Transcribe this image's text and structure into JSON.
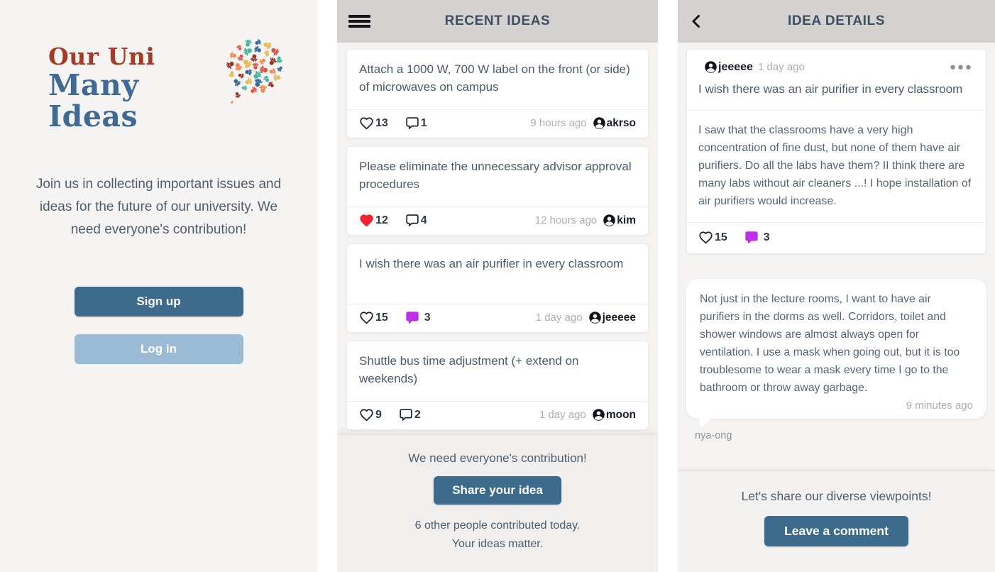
{
  "welcome_screen": {
    "logo_line1": "Our Uni",
    "logo_line2": "Many Ideas",
    "intro": "Join us in collecting important issues and ideas for the future of our university. We need everyone's contribution!",
    "sign_up_label": "Sign up",
    "log_in_label": "Log in"
  },
  "recent_ideas": {
    "title": "RECENT IDEAS",
    "ideas": [
      {
        "title": "Attach a 1000 W, 700 W label on the front (or side) of microwaves on campus",
        "likes": 13,
        "comments": 1,
        "time": "9 hours ago",
        "author": "akrso",
        "liked": false,
        "commented": false
      },
      {
        "title": "Please eliminate the unnecessary advisor approval procedures",
        "likes": 12,
        "comments": 4,
        "time": "12 hours ago",
        "author": "kim",
        "liked": true,
        "commented": false
      },
      {
        "title": "I wish there was an air purifier in every classroom",
        "likes": 15,
        "comments": 3,
        "time": "1 day ago",
        "author": "jeeeee",
        "liked": false,
        "commented": true
      },
      {
        "title": "Shuttle bus time adjustment (+ extend on weekends)",
        "likes": 9,
        "comments": 2,
        "time": "1 day ago",
        "author": "moon",
        "liked": false,
        "commented": false
      }
    ],
    "footer": {
      "message": "We need everyone's contribution!",
      "share_button_label": "Share your idea",
      "stats_line1": "6 other people contributed today.",
      "stats_line2": "Your ideas matter."
    }
  },
  "idea_details": {
    "title": "IDEA DETAILS",
    "post": {
      "author": "jeeeee",
      "time": "1 day ago",
      "title": "I wish there was an air purifier in every classroom",
      "body": "I saw that the classrooms have a very high concentration of fine dust, but none of them have air purifiers. Do all the labs have them? II think there are many labs without air cleaners ...! I hope installation of air purifiers would increase.",
      "likes": 15,
      "comments": 3,
      "liked": false,
      "commented": true
    },
    "comment": {
      "body": "Not just in the lecture rooms, I want to have air purifiers in the dorms as well. Corridors, toilet and shower windows are almost always open for ventilation. I use a mask when going out, but it is too troublesome to wear a mask every time I go to the bathroom or throw away garbage.",
      "time": "9 minutes ago",
      "author": "nya-ong"
    },
    "footer": {
      "message": "Let's share our diverse viewpoints!",
      "comment_button_label": "Leave a comment"
    }
  },
  "icons": {
    "menu": "hamburger",
    "back": "chevron-left",
    "like": "heart-outline",
    "like_active": "heart-filled",
    "comment": "speech-bubble-outline",
    "comment_active": "speech-bubble-filled",
    "user": "account-circle",
    "more": "ellipsis"
  },
  "colors": {
    "accent_blue": "#3c6b8e",
    "accent_blue_light": "#9bbad3",
    "heart_red": "#f2232e",
    "comment_purple": "#bf2ee8",
    "logo_red": "#a43b27",
    "logo_blue": "#3e6a93",
    "header_gray": "#d3d2d1",
    "panel_bg": "#f4f3f1",
    "text_primary": "#4a5b6e",
    "text_muted": "#abaeb4"
  }
}
